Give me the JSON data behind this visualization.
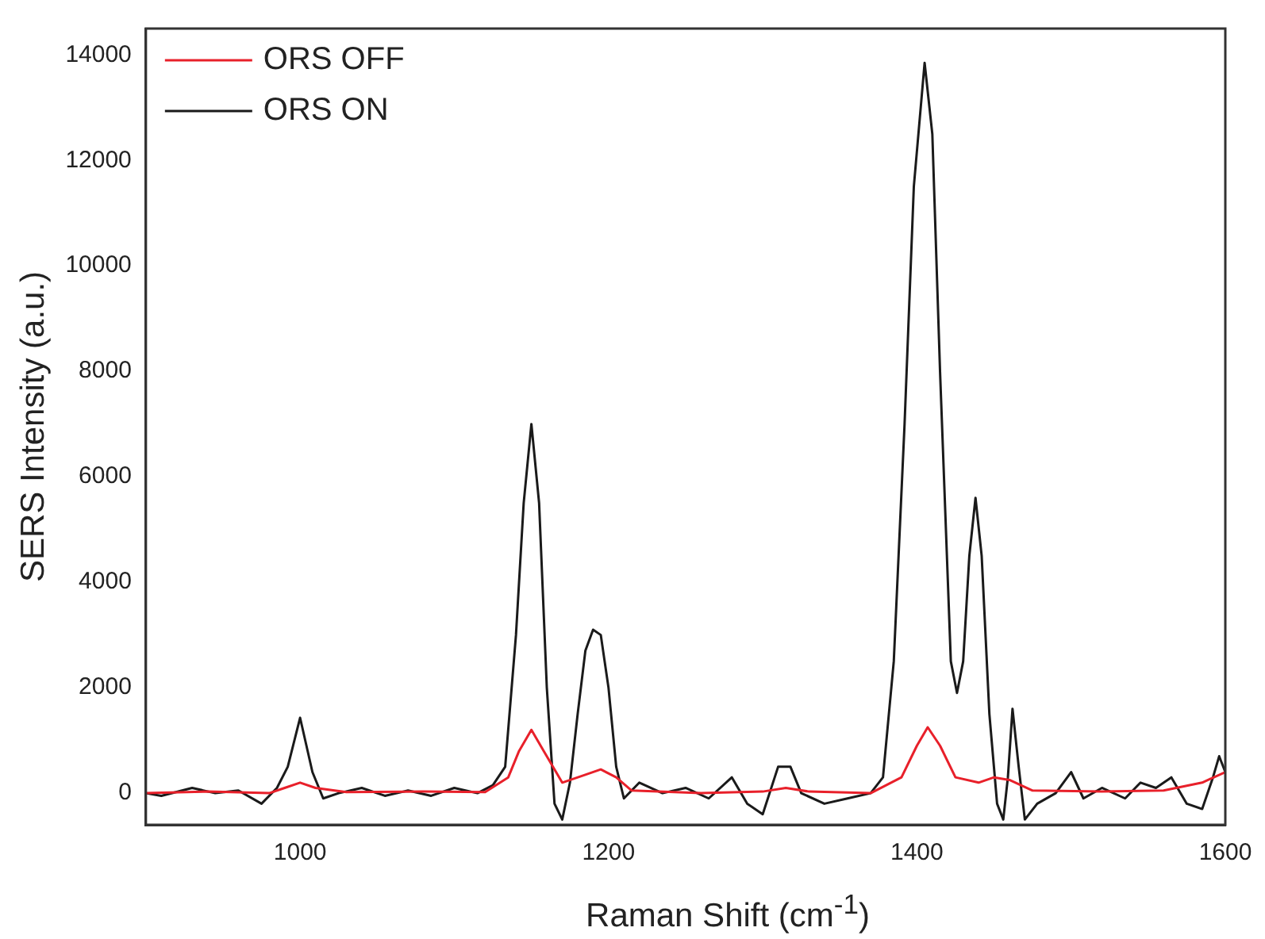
{
  "chart_data": {
    "type": "line",
    "xlabel": "Raman Shift (cm$^{-1}$)",
    "ylabel": "SERS Intensity (a.u.)",
    "xlim": [
      900,
      1600
    ],
    "xticks": [
      1000,
      1200,
      1400,
      1600
    ],
    "ylim": [
      -600,
      14500
    ],
    "yticks": [
      0,
      2000,
      4000,
      6000,
      8000,
      10000,
      12000,
      14000
    ],
    "legend": "top left",
    "grid": false,
    "marker": "none",
    "line_style": "solid",
    "series": [
      {
        "name": "ORS OFF",
        "color": "#e8202a",
        "x": [
          900,
          940,
          980,
          990,
          1000,
          1010,
          1030,
          1080,
          1120,
          1135,
          1142,
          1150,
          1158,
          1170,
          1185,
          1195,
          1205,
          1215,
          1260,
          1300,
          1315,
          1330,
          1370,
          1390,
          1400,
          1407,
          1415,
          1425,
          1440,
          1450,
          1460,
          1475,
          1520,
          1560,
          1585,
          1600
        ],
        "values": [
          0,
          30,
          0,
          100,
          200,
          100,
          20,
          30,
          20,
          300,
          800,
          1200,
          800,
          200,
          350,
          450,
          300,
          50,
          0,
          30,
          100,
          30,
          0,
          300,
          900,
          1250,
          900,
          300,
          200,
          300,
          250,
          50,
          30,
          50,
          200,
          400
        ]
      },
      {
        "name": "ORS ON",
        "color": "#1a1a1a",
        "x": [
          900,
          910,
          930,
          945,
          960,
          975,
          985,
          992,
          1000,
          1008,
          1015,
          1025,
          1040,
          1055,
          1070,
          1085,
          1100,
          1115,
          1125,
          1133,
          1140,
          1145,
          1150,
          1155,
          1160,
          1165,
          1170,
          1175,
          1180,
          1185,
          1190,
          1195,
          1200,
          1205,
          1210,
          1220,
          1235,
          1250,
          1265,
          1280,
          1290,
          1300,
          1310,
          1318,
          1325,
          1340,
          1355,
          1370,
          1378,
          1385,
          1392,
          1398,
          1405,
          1410,
          1415,
          1422,
          1426,
          1430,
          1434,
          1438,
          1442,
          1447,
          1452,
          1456,
          1459,
          1462,
          1466,
          1470,
          1478,
          1490,
          1500,
          1508,
          1520,
          1535,
          1545,
          1555,
          1565,
          1575,
          1585,
          1592,
          1596,
          1600
        ],
        "values": [
          0,
          -50,
          100,
          0,
          50,
          -200,
          100,
          500,
          1430,
          400,
          -100,
          0,
          100,
          -50,
          50,
          -50,
          100,
          0,
          150,
          500,
          3000,
          5500,
          7000,
          5500,
          2000,
          -200,
          -500,
          200,
          1500,
          2700,
          3100,
          3000,
          2000,
          500,
          -100,
          200,
          0,
          100,
          -100,
          300,
          -200,
          -400,
          500,
          500,
          0,
          -200,
          -100,
          0,
          300,
          2500,
          7000,
          11500,
          13850,
          12500,
          8000,
          2500,
          1900,
          2500,
          4500,
          5600,
          4500,
          1500,
          -200,
          -500,
          300,
          1600,
          500,
          -500,
          -200,
          0,
          400,
          -100,
          100,
          -100,
          200,
          100,
          300,
          -200,
          -300,
          300,
          700,
          400
        ]
      }
    ]
  }
}
